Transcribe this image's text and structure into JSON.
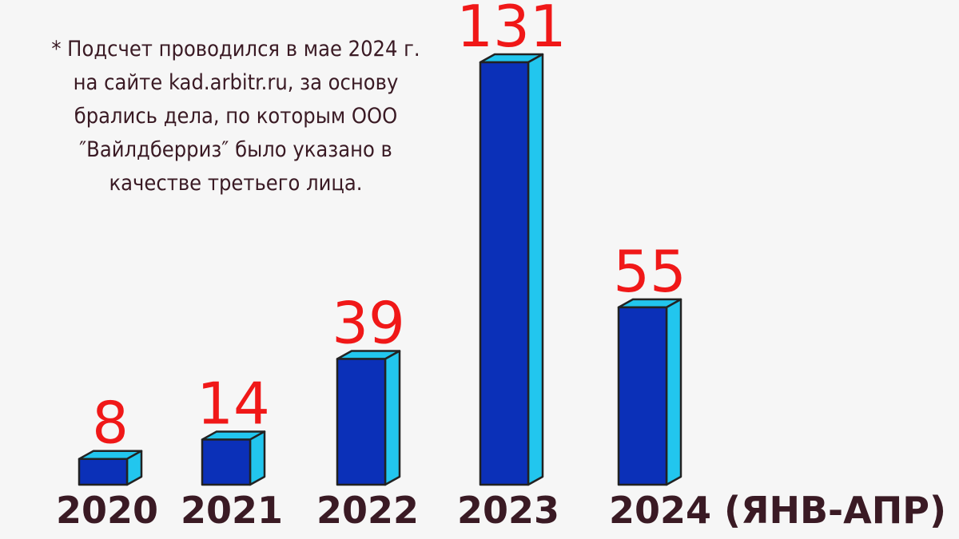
{
  "chart_data": {
    "type": "bar3d",
    "note": [
      "* Подсчет проводился в мае 2024 г.",
      "на сайте kad.arbitr.ru, за основу",
      "брались дела, по которым ООО",
      "″Вайлдберриз″ было указано в",
      "качестве третьего лица."
    ],
    "categories": [
      "2020",
      "2021",
      "2022",
      "2023",
      "2024 (ЯНВ-АПР)"
    ],
    "values": [
      8,
      14,
      39,
      131,
      55
    ],
    "color": "#0b30b8",
    "side_color": "#22c6ee"
  }
}
